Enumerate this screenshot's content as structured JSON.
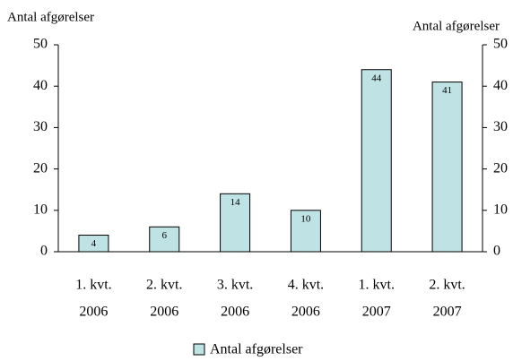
{
  "chart_data": {
    "type": "bar",
    "y_label": "Antal afgørelser",
    "y2_label": "Antal afgørelser",
    "categories": [
      [
        "1. kvt.",
        "2006"
      ],
      [
        "2. kvt.",
        "2006"
      ],
      [
        "3. kvt.",
        "2006"
      ],
      [
        "4. kvt.",
        "2006"
      ],
      [
        "1. kvt.",
        "2007"
      ],
      [
        "2. kvt.",
        "2007"
      ]
    ],
    "series": [
      {
        "name": "Antal afgørelser",
        "color": "#bfe2e4",
        "values": [
          4,
          6,
          14,
          10,
          44,
          41
        ]
      }
    ],
    "ylim": [
      0,
      50
    ],
    "yticks": [
      0,
      10,
      20,
      30,
      40,
      50
    ],
    "y2lim": [
      0,
      50
    ],
    "y2ticks": [
      0,
      10,
      20,
      30,
      40,
      50
    ],
    "legend": "bottom"
  }
}
